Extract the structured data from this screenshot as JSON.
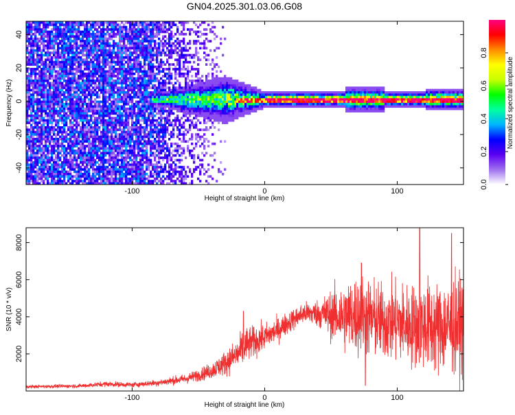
{
  "page_title": "GN04.2025.301.03.06.G08",
  "chart_data": [
    {
      "type": "heatmap",
      "title": "GN04.2025.301.03.06.G08",
      "xlabel": "Height of straight line (km)",
      "ylabel": "Frequency (Hz)",
      "xlim": [
        -180,
        150
      ],
      "ylim": [
        -50,
        48
      ],
      "x_ticks": [
        -100,
        0,
        100
      ],
      "y_ticks": [
        40,
        20,
        0,
        -20,
        -40
      ],
      "grid": false,
      "colorbar": {
        "label": "Normalized spectral amplitude",
        "range": [
          0.0,
          1.0
        ],
        "ticks": [
          0.0,
          0.2,
          0.4,
          0.6,
          0.8
        ],
        "colors": [
          "#ffffff",
          "#a070f0",
          "#5a00f0",
          "#0000ff",
          "#00b4ff",
          "#00ffa0",
          "#00ff00",
          "#c8ff00",
          "#ffff00",
          "#ff8c00",
          "#ff0000",
          "#ff0080"
        ]
      },
      "features": {
        "noise_region_x": [
          -180,
          -30
        ],
        "signal_band_start_x": -85,
        "signal_band_center_hz": 1,
        "stripe_x": -122
      }
    },
    {
      "type": "line",
      "xlabel": "Height of straight line (km)",
      "ylabel": "SNR (10 * v/v)",
      "xlim": [
        -180,
        150
      ],
      "ylim": [
        0,
        8800
      ],
      "x_ticks": [
        -100,
        0,
        100
      ],
      "y_ticks": [
        2000,
        4000,
        6000,
        8000
      ],
      "grid": false,
      "line_color": "#f03030",
      "envelope": {
        "x": [
          -180,
          -140,
          -120,
          -100,
          -80,
          -60,
          -50,
          -40,
          -30,
          -20,
          -15,
          -10,
          0,
          10,
          20,
          30,
          40,
          50,
          60,
          70,
          80,
          90,
          100,
          110,
          120,
          130,
          140,
          150
        ],
        "mean": [
          230,
          270,
          380,
          330,
          450,
          650,
          850,
          1100,
          1500,
          2000,
          2400,
          2600,
          2900,
          3300,
          3800,
          4200,
          4200,
          4100,
          4000,
          4100,
          3900,
          3700,
          3700,
          3500,
          3600,
          3400,
          3500,
          3600
        ],
        "spread": [
          60,
          70,
          100,
          90,
          120,
          180,
          220,
          300,
          450,
          600,
          700,
          600,
          500,
          450,
          400,
          400,
          500,
          900,
          1300,
          1500,
          1500,
          1400,
          1500,
          1500,
          1700,
          1700,
          1800,
          1800
        ]
      },
      "peaks": [
        {
          "x": -16,
          "y": 4300
        },
        {
          "x": 73,
          "y": 6900
        },
        {
          "x": 117,
          "y": 8800
        },
        {
          "x": 141,
          "y": 8500
        },
        {
          "x": 76,
          "y": 300
        }
      ]
    }
  ]
}
